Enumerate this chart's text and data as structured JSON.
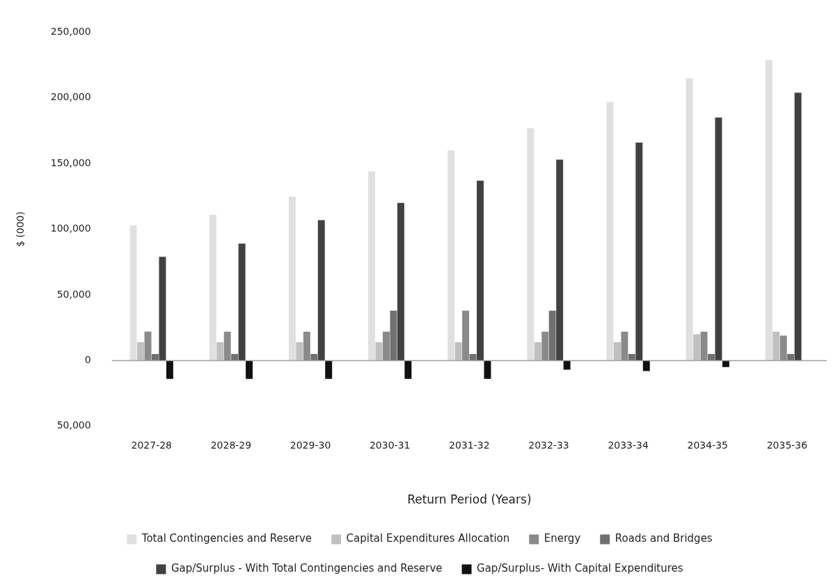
{
  "chart_data": {
    "type": "bar",
    "xlabel": "Return Period (Years)",
    "ylabel": "$ (000)",
    "categories": [
      "2027-28",
      "2028-29",
      "2029-30",
      "2030-31",
      "2031-32",
      "2032-33",
      "2033-34",
      "2034-35",
      "2035-36"
    ],
    "series": [
      {
        "name": "Total Contingencies and Reserve",
        "color": "#e0e0e0",
        "values": [
          103000,
          111000,
          125000,
          144000,
          160000,
          177000,
          197000,
          215000,
          229000
        ]
      },
      {
        "name": "Capital Expenditures Allocation",
        "color": "#c0c0c0",
        "values": [
          14000,
          14000,
          14000,
          14000,
          14000,
          14000,
          14000,
          20000,
          22000
        ]
      },
      {
        "name": "Energy",
        "color": "#8a8a8a",
        "values": [
          22000,
          22000,
          22000,
          22000,
          38000,
          22000,
          22000,
          22000,
          19000
        ]
      },
      {
        "name": "Roads and Bridges",
        "color": "#707070",
        "values": [
          5000,
          5000,
          5000,
          38000,
          5000,
          38000,
          5000,
          5000,
          5000
        ]
      },
      {
        "name": "Gap/Surplus - With Total Contingencies and Reserve",
        "color": "#443f40",
        "values": [
          79000,
          89000,
          107000,
          120000,
          137000,
          153000,
          166000,
          185000,
          204000
        ]
      },
      {
        "name": "Gap/Surplus- With Capital Expenditures",
        "color": "#111111",
        "values": [
          -14000,
          -14000,
          -14000,
          -14000,
          -14000,
          -7000,
          -8000,
          -5000,
          null
        ]
      }
    ],
    "ylim": [
      -50000,
      250000
    ],
    "yticks": [
      {
        "value": -50000,
        "label": "50,000"
      },
      {
        "value": 0,
        "label": "0"
      },
      {
        "value": 50000,
        "label": "50,000"
      },
      {
        "value": 100000,
        "label": "100,000"
      },
      {
        "value": 150000,
        "label": "150,000"
      },
      {
        "value": 200000,
        "label": "200,000"
      },
      {
        "value": 250000,
        "label": "250,000"
      }
    ],
    "ref_lines": [
      {
        "axis": "y",
        "value": 0,
        "color": "#a0a0a0"
      }
    ],
    "grid": false,
    "legend": "bottom"
  }
}
